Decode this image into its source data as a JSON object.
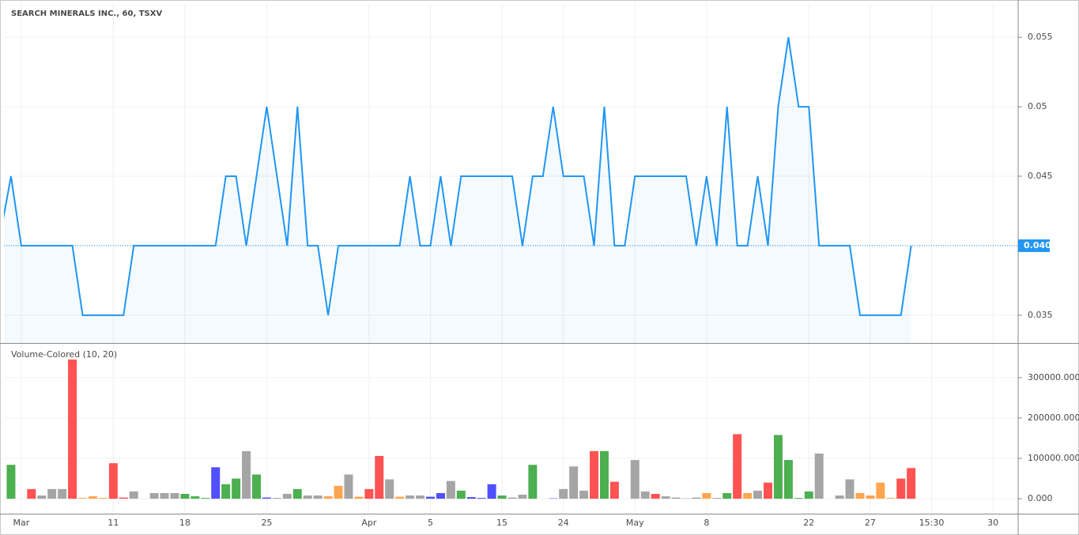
{
  "chart_data": [
    {
      "type": "line",
      "title": "SEARCH MINERALS INC., 60, TSXV",
      "color": "#2196f3",
      "categories": [
        null,
        null,
        "Mar",
        null,
        null,
        null,
        null,
        null,
        null,
        null,
        null,
        "11",
        null,
        null,
        null,
        null,
        null,
        null,
        "18",
        null,
        null,
        null,
        null,
        null,
        null,
        null,
        "25",
        null,
        null,
        null,
        null,
        null,
        null,
        null,
        null,
        null,
        "Apr",
        null,
        null,
        null,
        null,
        null,
        "5",
        null,
        null,
        null,
        null,
        null,
        null,
        "15",
        null,
        null,
        null,
        null,
        null,
        "24",
        null,
        null,
        null,
        null,
        null,
        null,
        "May",
        null,
        null,
        null,
        null,
        null,
        null,
        "8",
        null,
        null,
        null,
        null,
        null,
        null,
        null,
        null,
        null,
        "22",
        null,
        null,
        null,
        null,
        null,
        "27",
        null,
        null,
        null,
        null,
        null,
        "15:30",
        null,
        null,
        null,
        null,
        null,
        "30"
      ],
      "values": [
        0.041,
        0.045,
        0.04,
        0.04,
        0.04,
        0.04,
        0.04,
        0.04,
        0.035,
        0.035,
        0.035,
        0.035,
        0.035,
        0.04,
        0.04,
        0.04,
        0.04,
        0.04,
        0.04,
        0.04,
        0.04,
        0.04,
        0.045,
        0.045,
        0.04,
        0.045,
        0.05,
        0.045,
        0.04,
        0.05,
        0.04,
        0.04,
        0.035,
        0.04,
        0.04,
        0.04,
        0.04,
        0.04,
        0.04,
        0.04,
        0.045,
        0.04,
        0.04,
        0.045,
        0.04,
        0.045,
        0.045,
        0.045,
        0.045,
        0.045,
        0.045,
        0.04,
        0.045,
        0.045,
        0.05,
        0.045,
        0.045,
        0.045,
        0.04,
        0.05,
        0.04,
        0.04,
        0.045,
        0.045,
        0.045,
        0.045,
        0.045,
        0.045,
        0.04,
        0.045,
        0.04,
        0.05,
        0.04,
        0.04,
        0.045,
        0.04,
        0.05,
        0.055,
        0.05,
        0.05,
        0.04,
        0.04,
        0.04,
        0.04,
        0.035,
        0.035,
        0.035,
        0.035,
        0.035,
        0.04,
        null,
        null,
        null,
        null,
        null,
        null,
        null,
        null
      ],
      "ylim": [
        0.033,
        0.0574
      ],
      "yticks": [
        0.035,
        0.04,
        0.045,
        0.05,
        0.055
      ],
      "last_label": {
        "value": 0.04,
        "label": "0.040"
      }
    },
    {
      "type": "bar",
      "title": "Volume-Colored (10, 20)",
      "values": [
        null,
        84000,
        null,
        24000,
        8000,
        24000,
        24000,
        345000,
        2000,
        6000,
        2000,
        88000,
        3000,
        18000,
        null,
        14000,
        14000,
        14000,
        12000,
        6000,
        2000,
        78000,
        36000,
        50000,
        118000,
        60000,
        3000,
        2000,
        12000,
        24000,
        8000,
        8000,
        6000,
        32000,
        60000,
        5000,
        24000,
        106000,
        48000,
        5000,
        8000,
        8000,
        5000,
        14000,
        44000,
        20000,
        4000,
        2000,
        36000,
        8000,
        3000,
        10000,
        84000,
        null,
        1000,
        24000,
        80000,
        20000,
        118000,
        118000,
        42000,
        null,
        96000,
        18000,
        12000,
        6000,
        3000,
        1000,
        3000,
        14000,
        2000,
        14000,
        160000,
        14000,
        20000,
        40000,
        158000,
        96000,
        2000,
        18000,
        112000,
        null,
        8000,
        48000,
        14000,
        8000,
        40000,
        2000,
        50000,
        76000,
        null,
        null,
        null,
        null,
        null,
        null,
        null,
        null
      ],
      "colors": [
        null,
        "#4caf50",
        null,
        "#ff5252",
        "#a5a5a5",
        "#a5a5a5",
        "#a5a5a5",
        "#ff5252",
        "#ffa54f",
        "#ffa54f",
        "#ffa54f",
        "#ff5252",
        "#ff5252",
        "#a5a5a5",
        null,
        "#a5a5a5",
        "#a5a5a5",
        "#a5a5a5",
        "#4caf50",
        "#4caf50",
        "#4caf50",
        "#5050ff",
        "#4caf50",
        "#4caf50",
        "#a5a5a5",
        "#4caf50",
        "#5050ff",
        "#a5a5a5",
        "#a5a5a5",
        "#4caf50",
        "#a5a5a5",
        "#a5a5a5",
        "#ffa54f",
        "#ffa54f",
        "#a5a5a5",
        "#ffa54f",
        "#ff5252",
        "#ff5252",
        "#a5a5a5",
        "#ffa54f",
        "#a5a5a5",
        "#a5a5a5",
        "#5050ff",
        "#5050ff",
        "#a5a5a5",
        "#4caf50",
        "#5050ff",
        "#5050ff",
        "#5050ff",
        "#4caf50",
        "#a5a5a5",
        "#a5a5a5",
        "#4caf50",
        null,
        "#5050ff",
        "#a5a5a5",
        "#a5a5a5",
        "#a5a5a5",
        "#ff5252",
        "#4caf50",
        "#ff5252",
        null,
        "#a5a5a5",
        "#a5a5a5",
        "#ff5252",
        "#a5a5a5",
        "#a5a5a5",
        "#a5a5a5",
        "#a5a5a5",
        "#ffa54f",
        "#a5a5a5",
        "#4caf50",
        "#ff5252",
        "#ffa54f",
        "#a5a5a5",
        "#ff5252",
        "#4caf50",
        "#4caf50",
        "#4caf50",
        "#4caf50",
        "#a5a5a5",
        null,
        "#a5a5a5",
        "#a5a5a5",
        "#ffa54f",
        "#ffa54f",
        "#ffa54f",
        "#ffa54f",
        "#ff5252",
        "#ff5252",
        null,
        null,
        null,
        null,
        null,
        null,
        null,
        null
      ],
      "ylim": [
        -37000,
        384000
      ],
      "yticks": [
        {
          "value": 0,
          "label": "0.000"
        },
        {
          "value": 100000,
          "label": "100000.000"
        },
        {
          "value": 200000,
          "label": "200000.000"
        },
        {
          "value": 300000,
          "label": "300000.000"
        }
      ]
    }
  ]
}
